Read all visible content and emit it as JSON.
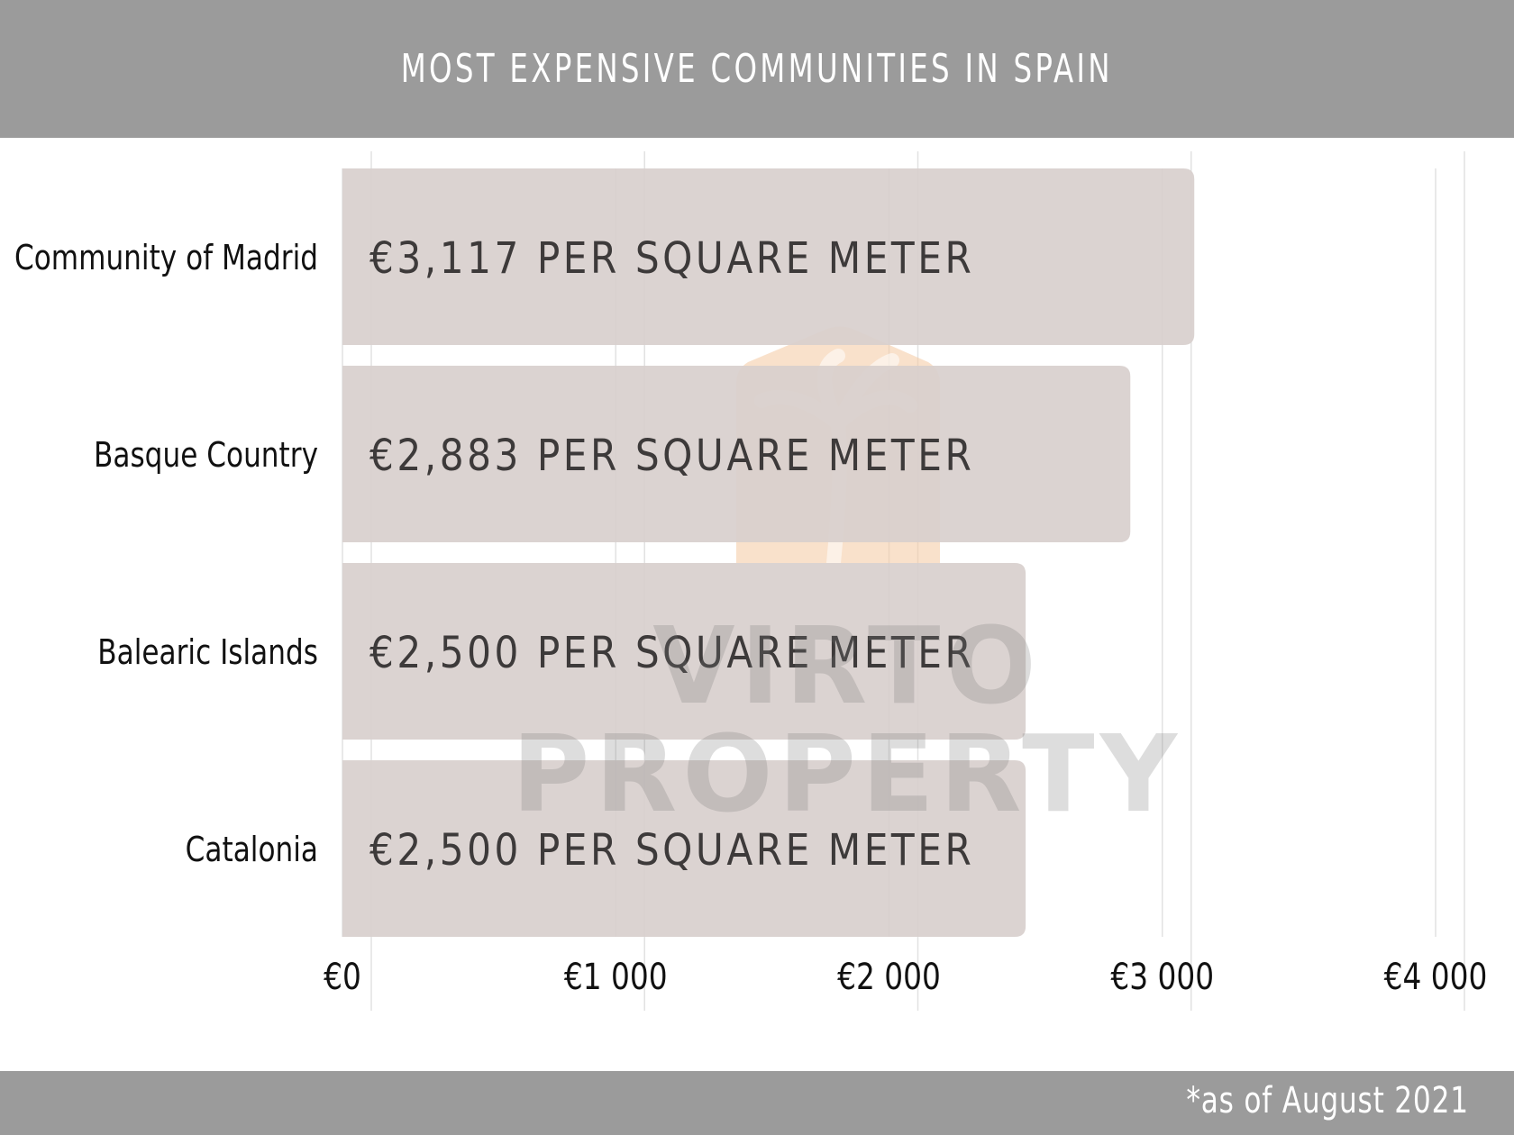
{
  "header": {
    "title": "MOST EXPENSIVE COMMUNITIES IN SPAIN"
  },
  "footer": {
    "note": "*as of August 2021"
  },
  "watermark": {
    "line1": "VIRTO",
    "line2": "PROPERTY"
  },
  "colors": {
    "band": "#9b9b9b",
    "bar": "#d8cfcd",
    "grid": "#e2e2e2",
    "logo": "#f4c9a0"
  },
  "chart_data": {
    "type": "bar",
    "orientation": "horizontal",
    "title": "MOST EXPENSIVE COMMUNITIES IN SPAIN",
    "categories": [
      "Community of Madrid",
      "Basque Country",
      "Balearic Islands",
      "Catalonia"
    ],
    "values": [
      3117,
      2883,
      2500,
      2500
    ],
    "bar_labels": [
      "€3,117 PER SQUARE METER",
      "€2,883 PER SQUARE METER",
      "€2,500 PER SQUARE METER",
      "€2,500 PER SQUARE METER"
    ],
    "x_ticks": [
      0,
      1000,
      2000,
      3000,
      4000
    ],
    "x_tick_labels": [
      "€0",
      "€1 000",
      "€2 000",
      "€3 000",
      "€4 000"
    ],
    "xlim": [
      0,
      4000
    ],
    "grid": true
  }
}
